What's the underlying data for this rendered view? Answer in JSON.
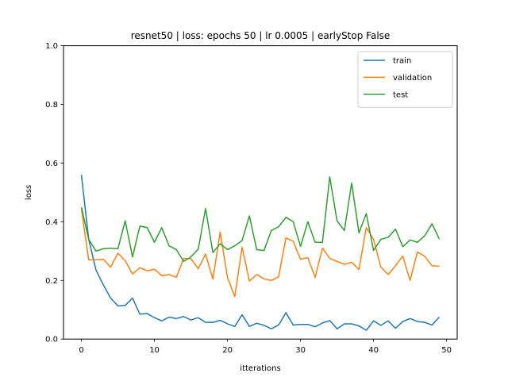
{
  "chart_data": {
    "type": "line",
    "title": "resnet50 |  loss: epochs 50 | lr 0.0005 | earlyStop False",
    "xlabel": "itterations",
    "ylabel": "loss",
    "xlim": [
      -2.45,
      51.45
    ],
    "ylim": [
      0.0,
      1.0
    ],
    "xticks": [
      0,
      10,
      20,
      30,
      40,
      50
    ],
    "xtick_labels": [
      "0",
      "10",
      "20",
      "30",
      "40",
      "50"
    ],
    "yticks": [
      0.0,
      0.2,
      0.4,
      0.6,
      0.8,
      1.0
    ],
    "ytick_labels": [
      "0.0",
      "0.2",
      "0.4",
      "0.6",
      "0.8",
      "1.0"
    ],
    "grid": false,
    "legend_position": "top-right",
    "x": [
      0,
      1,
      2,
      3,
      4,
      5,
      6,
      7,
      8,
      9,
      10,
      11,
      12,
      13,
      14,
      15,
      16,
      17,
      18,
      19,
      20,
      21,
      22,
      23,
      24,
      25,
      26,
      27,
      28,
      29,
      30,
      31,
      32,
      33,
      34,
      35,
      36,
      37,
      38,
      39,
      40,
      41,
      42,
      43,
      44,
      45,
      46,
      47,
      48,
      49
    ],
    "series": [
      {
        "name": "train",
        "color": "#1f77b4",
        "values": [
          0.56,
          0.34,
          0.235,
          0.185,
          0.14,
          0.113,
          0.115,
          0.14,
          0.085,
          0.087,
          0.073,
          0.062,
          0.075,
          0.07,
          0.077,
          0.065,
          0.073,
          0.057,
          0.057,
          0.064,
          0.052,
          0.043,
          0.083,
          0.043,
          0.054,
          0.047,
          0.035,
          0.048,
          0.09,
          0.048,
          0.05,
          0.05,
          0.042,
          0.055,
          0.063,
          0.035,
          0.052,
          0.052,
          0.045,
          0.03,
          0.062,
          0.047,
          0.062,
          0.037,
          0.06,
          0.07,
          0.06,
          0.057,
          0.048,
          0.075
        ]
      },
      {
        "name": "validation",
        "color": "#ff7f0e",
        "values": [
          0.445,
          0.27,
          0.27,
          0.272,
          0.245,
          0.293,
          0.267,
          0.222,
          0.243,
          0.233,
          0.238,
          0.216,
          0.22,
          0.211,
          0.275,
          0.274,
          0.24,
          0.29,
          0.204,
          0.365,
          0.21,
          0.145,
          0.313,
          0.198,
          0.22,
          0.205,
          0.2,
          0.212,
          0.345,
          0.333,
          0.272,
          0.278,
          0.21,
          0.31,
          0.275,
          0.265,
          0.255,
          0.262,
          0.237,
          0.38,
          0.34,
          0.245,
          0.22,
          0.25,
          0.283,
          0.2,
          0.297,
          0.282,
          0.25,
          0.248
        ]
      },
      {
        "name": "test",
        "color": "#2ca02c",
        "values": [
          0.45,
          0.34,
          0.3,
          0.308,
          0.31,
          0.308,
          0.403,
          0.28,
          0.385,
          0.38,
          0.33,
          0.38,
          0.318,
          0.305,
          0.265,
          0.28,
          0.307,
          0.445,
          0.295,
          0.325,
          0.305,
          0.318,
          0.336,
          0.42,
          0.305,
          0.302,
          0.37,
          0.383,
          0.415,
          0.4,
          0.316,
          0.4,
          0.33,
          0.33,
          0.553,
          0.403,
          0.37,
          0.532,
          0.362,
          0.428,
          0.302,
          0.34,
          0.347,
          0.375,
          0.315,
          0.338,
          0.33,
          0.352,
          0.393,
          0.341
        ]
      }
    ]
  }
}
